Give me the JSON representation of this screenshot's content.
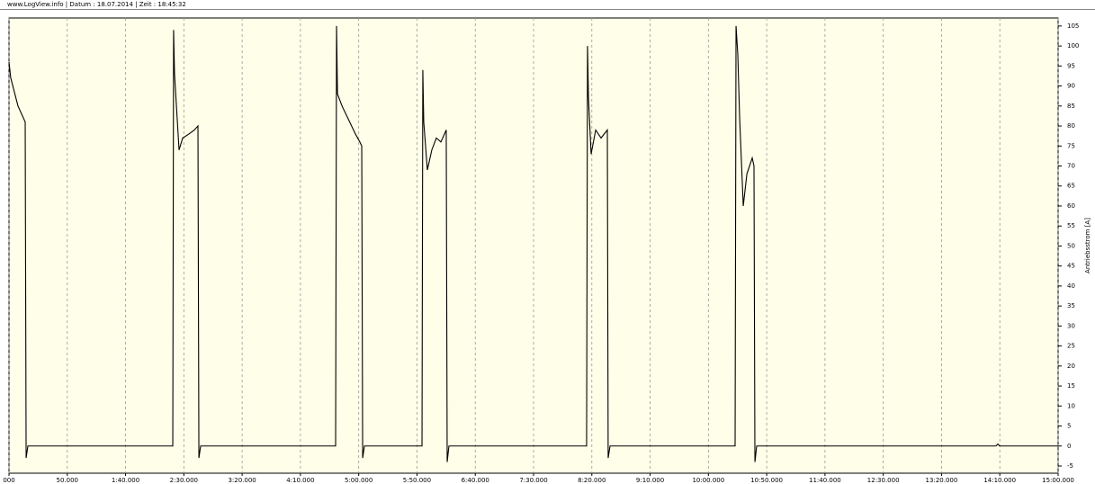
{
  "chart_data": {
    "type": "line",
    "title": "www.LogView.info  |  Datum : 18.07.2014  |  Zeit : 18:45:32",
    "ylabel": "Antriebsstrom [A]",
    "color": "#000000",
    "background": "#fffee8",
    "grid": true,
    "x": [
      0,
      1.5,
      7.7,
      13.9,
      14.7,
      16.2,
      140.5,
      141.2,
      142.0,
      145.9,
      149.0,
      154.4,
      159.0,
      162.1,
      162.9,
      164.4,
      280.2,
      281.0,
      281.8,
      285.7,
      297.2,
      301.0,
      302.6,
      303.4,
      304.9,
      354.3,
      355.0,
      355.8,
      358.9,
      362.7,
      366.6,
      370.5,
      375.1,
      375.9,
      377.4,
      495.5,
      496.3,
      497.1,
      499.4,
      503.3,
      507.9,
      513.3,
      514.0,
      515.6,
      622.9,
      623.7,
      625.2,
      626.8,
      629.9,
      633.0,
      637.6,
      639.1,
      639.9,
      641.4,
      846.7,
      848.3,
      849.8,
      900
    ],
    "values": [
      96,
      92,
      85,
      81,
      -3,
      0,
      0,
      104,
      93,
      74,
      77,
      78,
      79,
      80,
      -3,
      0,
      0,
      105,
      88,
      85,
      78,
      76,
      75,
      -3,
      0,
      0,
      94,
      81,
      69,
      74,
      77,
      76,
      79,
      -4,
      0,
      0,
      100,
      87,
      73,
      79,
      77,
      79,
      -3,
      0,
      0,
      105,
      98,
      82,
      60,
      68,
      72,
      70,
      -4,
      0,
      0,
      0.5,
      0,
      0
    ],
    "xlim": [
      0,
      900
    ],
    "ylim": [
      -6.8,
      107
    ],
    "xticks": [
      {
        "value": 0,
        "label": "000"
      },
      {
        "value": 50,
        "label": "50.000"
      },
      {
        "value": 100,
        "label": "1:40.000"
      },
      {
        "value": 150,
        "label": "2:30.000"
      },
      {
        "value": 200,
        "label": "3:20.000"
      },
      {
        "value": 250,
        "label": "4:10.000"
      },
      {
        "value": 300,
        "label": "5:00.000"
      },
      {
        "value": 350,
        "label": "5:50.000"
      },
      {
        "value": 400,
        "label": "6:40.000"
      },
      {
        "value": 450,
        "label": "7:30.000"
      },
      {
        "value": 500,
        "label": "8:20.000"
      },
      {
        "value": 550,
        "label": "9:10.000"
      },
      {
        "value": 600,
        "label": "10:00.000"
      },
      {
        "value": 650,
        "label": "10:50.000"
      },
      {
        "value": 700,
        "label": "11:40.000"
      },
      {
        "value": 750,
        "label": "12:30.000"
      },
      {
        "value": 800,
        "label": "13:20.000"
      },
      {
        "value": 850,
        "label": "14:10.000"
      },
      {
        "value": 900,
        "label": "15:00.000"
      }
    ],
    "yticks": [
      -5,
      0,
      5,
      10,
      15,
      20,
      25,
      30,
      35,
      40,
      45,
      50,
      55,
      60,
      65,
      70,
      75,
      80,
      85,
      90,
      95,
      100,
      105
    ]
  }
}
